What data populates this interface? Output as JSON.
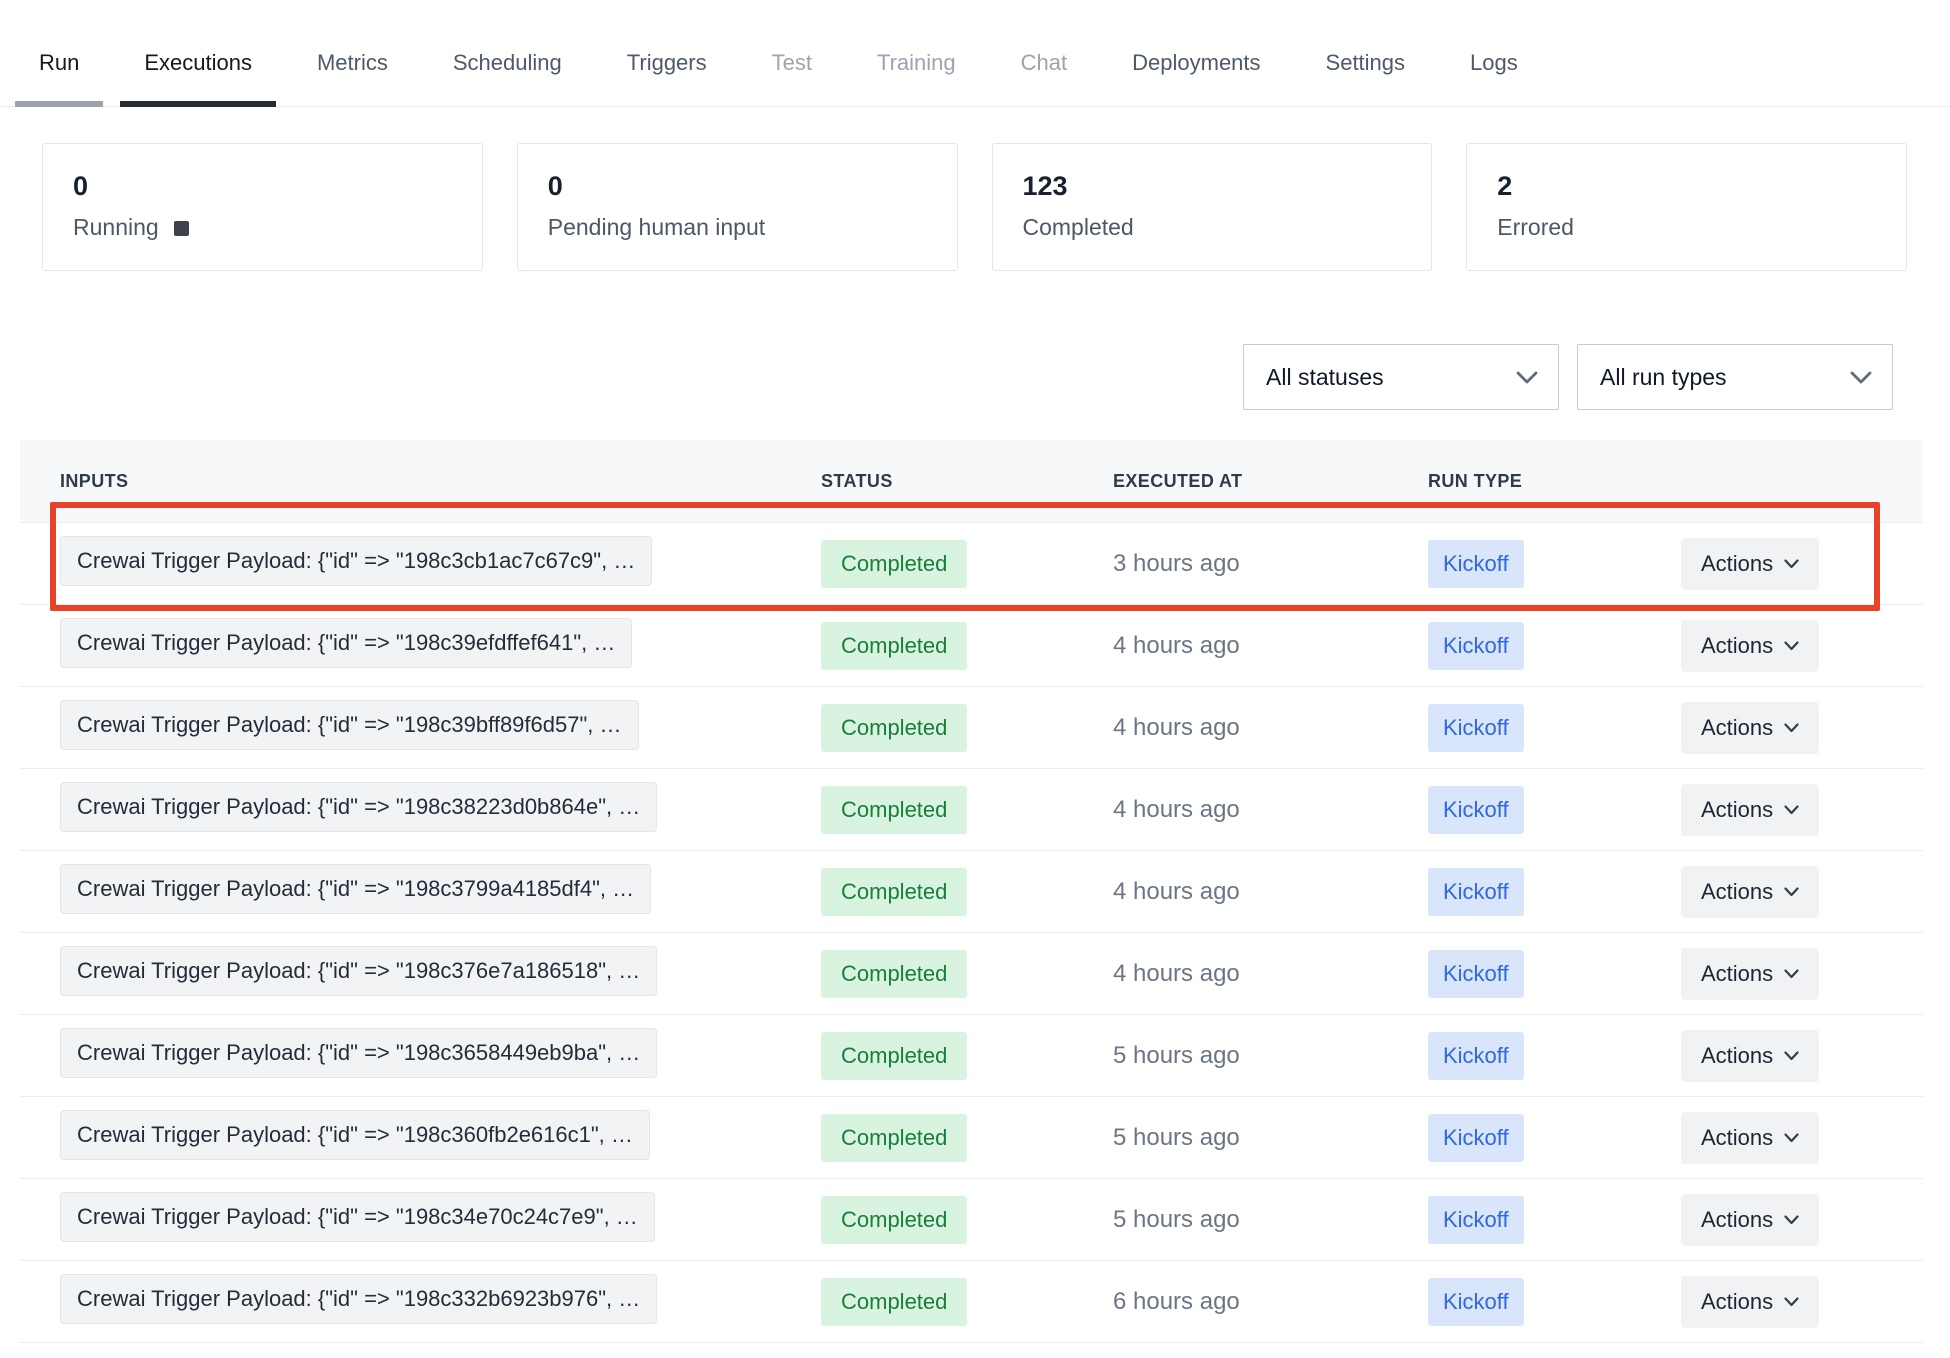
{
  "nav": {
    "tabs": [
      {
        "label": "Run",
        "state": "underlined"
      },
      {
        "label": "Executions",
        "state": "active"
      },
      {
        "label": "Metrics",
        "state": "normal"
      },
      {
        "label": "Scheduling",
        "state": "normal"
      },
      {
        "label": "Triggers",
        "state": "normal"
      },
      {
        "label": "Test",
        "state": "muted"
      },
      {
        "label": "Training",
        "state": "muted"
      },
      {
        "label": "Chat",
        "state": "muted"
      },
      {
        "label": "Deployments",
        "state": "normal"
      },
      {
        "label": "Settings",
        "state": "normal"
      },
      {
        "label": "Logs",
        "state": "normal"
      }
    ]
  },
  "stats": {
    "cards": [
      {
        "value": "0",
        "label": "Running",
        "icon": "stop-square"
      },
      {
        "value": "0",
        "label": "Pending human input"
      },
      {
        "value": "123",
        "label": "Completed"
      },
      {
        "value": "2",
        "label": "Errored"
      }
    ]
  },
  "filters": {
    "status": {
      "value": "All statuses"
    },
    "run_type": {
      "value": "All run types"
    }
  },
  "table": {
    "columns": [
      "INPUTS",
      "STATUS",
      "EXECUTED AT",
      "RUN TYPE"
    ],
    "actions_label": "Actions",
    "rows": [
      {
        "input": "Crewai Trigger Payload: {\"id\" => \"198c3cb1ac7c67c9\", …",
        "status": "Completed",
        "executed_at": "3 hours ago",
        "run_type": "Kickoff",
        "highlighted": true
      },
      {
        "input": "Crewai Trigger Payload: {\"id\" => \"198c39efdffef641\", …",
        "status": "Completed",
        "executed_at": "4 hours ago",
        "run_type": "Kickoff",
        "highlighted": false
      },
      {
        "input": "Crewai Trigger Payload: {\"id\" => \"198c39bff89f6d57\", …",
        "status": "Completed",
        "executed_at": "4 hours ago",
        "run_type": "Kickoff",
        "highlighted": false
      },
      {
        "input": "Crewai Trigger Payload: {\"id\" => \"198c38223d0b864e\", …",
        "status": "Completed",
        "executed_at": "4 hours ago",
        "run_type": "Kickoff",
        "highlighted": false
      },
      {
        "input": "Crewai Trigger Payload: {\"id\" => \"198c3799a4185df4\", …",
        "status": "Completed",
        "executed_at": "4 hours ago",
        "run_type": "Kickoff",
        "highlighted": false
      },
      {
        "input": "Crewai Trigger Payload: {\"id\" => \"198c376e7a186518\", …",
        "status": "Completed",
        "executed_at": "4 hours ago",
        "run_type": "Kickoff",
        "highlighted": false
      },
      {
        "input": "Crewai Trigger Payload: {\"id\" => \"198c3658449eb9ba\", …",
        "status": "Completed",
        "executed_at": "5 hours ago",
        "run_type": "Kickoff",
        "highlighted": false
      },
      {
        "input": "Crewai Trigger Payload: {\"id\" => \"198c360fb2e616c1\", …",
        "status": "Completed",
        "executed_at": "5 hours ago",
        "run_type": "Kickoff",
        "highlighted": false
      },
      {
        "input": "Crewai Trigger Payload: {\"id\" => \"198c34e70c24c7e9\", …",
        "status": "Completed",
        "executed_at": "5 hours ago",
        "run_type": "Kickoff",
        "highlighted": false
      },
      {
        "input": "Crewai Trigger Payload: {\"id\" => \"198c332b6923b976\", …",
        "status": "Completed",
        "executed_at": "6 hours ago",
        "run_type": "Kickoff",
        "highlighted": false
      }
    ]
  },
  "colors": {
    "highlight": "#e7432a",
    "status_completed_bg": "#d9f3e1",
    "status_completed_text": "#1a7e3b",
    "run_type_bg": "#d8e5fb",
    "run_type_text": "#2f68e0"
  }
}
